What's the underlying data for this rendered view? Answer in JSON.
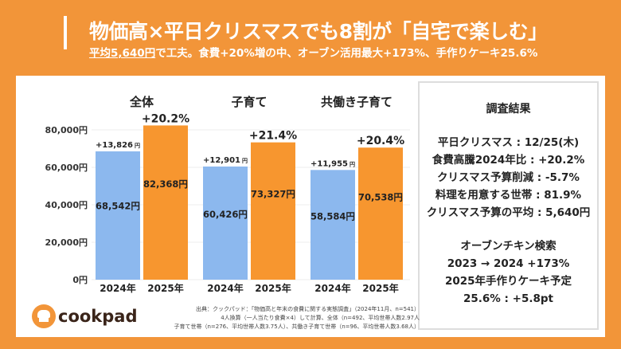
{
  "header": {
    "title": "物価高×平日クリスマスでも8割が「自宅で楽しむ」",
    "subtitle_underlined": "平均5,640円",
    "subtitle_rest": "で工夫。食費+20%増の中、オーブン活用最大+173%、手作りケーキ25.6%"
  },
  "chart_data": {
    "type": "bar",
    "ylim": [
      0,
      80000
    ],
    "yticks": [
      "0円",
      "20,000円",
      "40,000円",
      "60,000円",
      "80,000円"
    ],
    "ytick_values": [
      0,
      20000,
      40000,
      60000,
      80000
    ],
    "grid": true,
    "groups": [
      {
        "title": "全体",
        "categories": [
          "2024年",
          "2025年"
        ],
        "values": [
          68542,
          82368
        ],
        "value_labels": [
          "68,542円",
          "82,368円"
        ],
        "diff_label": "+13,826",
        "diff_unit": "円",
        "pct_label": "+20.2%"
      },
      {
        "title": "子育て",
        "categories": [
          "2024年",
          "2025年"
        ],
        "values": [
          60426,
          73327
        ],
        "value_labels": [
          "60,426円",
          "73,327円"
        ],
        "diff_label": "+12,901",
        "diff_unit": "円",
        "pct_label": "+21.4%"
      },
      {
        "title": "共働き子育て",
        "categories": [
          "2024年",
          "2025年"
        ],
        "values": [
          58584,
          70538
        ],
        "value_labels": [
          "58,584円",
          "70,538円"
        ],
        "diff_label": "+11,955",
        "diff_unit": "円",
        "pct_label": "+20.4%"
      }
    ],
    "colors": {
      "2024": "#8cb8ee",
      "2025": "#f7962f"
    }
  },
  "summary": {
    "title": "調査結果",
    "lines": [
      "平日クリスマス : 12/25(木)",
      "食費高騰2024年比 : +20.2%",
      "クリスマス予算削減 : -5.7%",
      "料理を用意する世帯 : 81.9%",
      "クリスマス予算の平均 : 5,640円"
    ],
    "lines2": [
      "オーブンチキン検索",
      "2023 → 2024 +173%",
      "2025年手作りケーキ予定",
      "25.6% : +5.8pt"
    ]
  },
  "source": [
    "出典：クックパッド：「物価高と年末の食費に関する実態調査」（2024年11月、n=541）",
    "4人換算（一人当たり食費×4）して計算、全体（n=492、平均世帯人数2.97人",
    "子育て世帯（n=276、平均世帯人数3.75人）、共働き子育て世帯（n=96、平均世帯人数3.68人）"
  ],
  "logo": {
    "text": "cookpad"
  }
}
